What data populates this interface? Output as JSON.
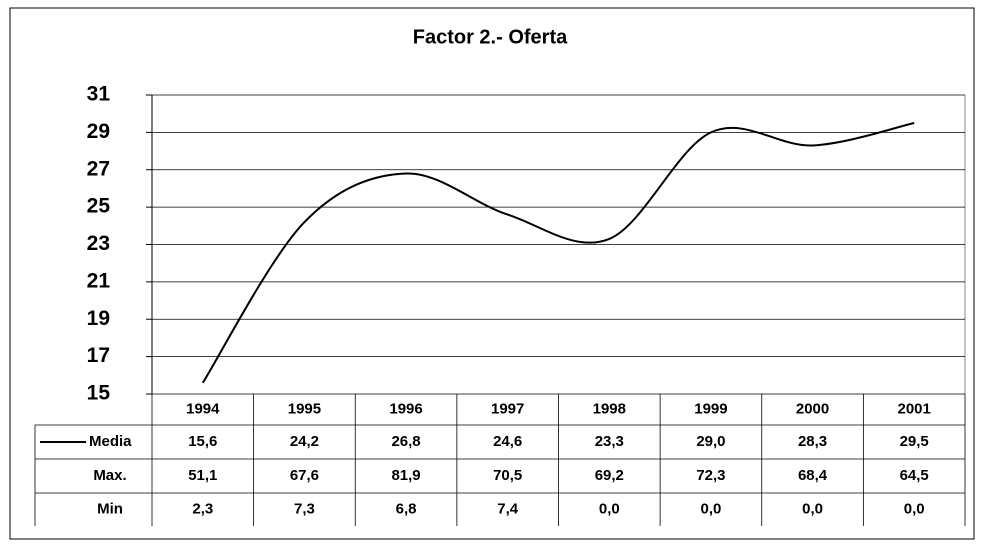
{
  "chart_data": {
    "type": "line",
    "title": "Factor 2.- Oferta",
    "categories": [
      "1994",
      "1995",
      "1996",
      "1997",
      "1998",
      "1999",
      "2000",
      "2001"
    ],
    "series": [
      {
        "name": "Media",
        "color": "#000000",
        "values": [
          15.6,
          24.2,
          26.8,
          24.6,
          23.3,
          29.0,
          28.3,
          29.5
        ],
        "value_labels": [
          "15,6",
          "24,2",
          "26,8",
          "24,6",
          "23,3",
          "29,0",
          "28,3",
          "29,5"
        ]
      }
    ],
    "data_table": [
      {
        "name": "Max.",
        "values": [
          51.1,
          67.6,
          81.9,
          70.5,
          69.2,
          72.3,
          68.4,
          64.5
        ],
        "value_labels": [
          "51,1",
          "67,6",
          "81,9",
          "70,5",
          "69,2",
          "72,3",
          "68,4",
          "64,5"
        ]
      },
      {
        "name": "Min",
        "values": [
          2.3,
          7.3,
          6.8,
          7.4,
          0.0,
          0.0,
          0.0,
          0.0
        ],
        "value_labels": [
          "2,3",
          "7,3",
          "6,8",
          "7,4",
          "0,0",
          "0,0",
          "0,0",
          "0,0"
        ]
      }
    ],
    "ylim": [
      15,
      31
    ],
    "yticks": [
      15,
      17,
      19,
      21,
      23,
      25,
      27,
      29,
      31
    ],
    "grid": true,
    "smooth": true
  }
}
